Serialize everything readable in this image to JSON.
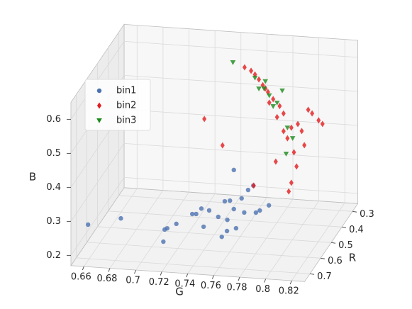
{
  "chart_data": {
    "type": "scatter3d",
    "xlabel": "G",
    "ylabel": "R",
    "zlabel": "B",
    "xlim": [
      0.65,
      0.83
    ],
    "ylim": [
      0.25,
      0.75
    ],
    "zlim": [
      0.17,
      0.65
    ],
    "xticks": [
      0.66,
      0.68,
      0.7,
      0.72,
      0.74,
      0.76,
      0.78,
      0.8,
      0.82
    ],
    "yticks": [
      0.3,
      0.4,
      0.5,
      0.6,
      0.7
    ],
    "zticks": [
      0.2,
      0.3,
      0.4,
      0.5,
      0.6
    ],
    "grid": true,
    "legend": "upper left",
    "series": [
      {
        "name": "bin1",
        "color": "#4c72b0",
        "marker": "circle",
        "x": [
          0.655,
          0.714,
          0.716,
          0.713,
          0.723,
          0.744,
          0.762,
          0.769,
          0.758,
          0.668,
          0.723,
          0.726,
          0.73,
          0.736,
          0.743,
          0.748,
          0.75,
          0.752,
          0.755,
          0.761,
          0.763,
          0.766,
          0.77,
          0.772,
          0.775,
          0.782,
          0.755
        ],
        "y": [
          0.65,
          0.65,
          0.65,
          0.65,
          0.65,
          0.65,
          0.65,
          0.65,
          0.65,
          0.5,
          0.5,
          0.5,
          0.5,
          0.5,
          0.5,
          0.5,
          0.5,
          0.5,
          0.5,
          0.5,
          0.5,
          0.5,
          0.5,
          0.5,
          0.5,
          0.5,
          0.5
        ],
        "z": [
          0.246,
          0.247,
          0.251,
          0.211,
          0.266,
          0.263,
          0.255,
          0.265,
          0.237,
          0.199,
          0.226,
          0.227,
          0.244,
          0.24,
          0.223,
          0.27,
          0.216,
          0.273,
          0.364,
          0.282,
          0.241,
          0.308,
          0.322,
          0.243,
          0.25,
          0.267,
          0.249
        ]
      },
      {
        "name": "bin2",
        "color": "#e41a1c",
        "marker": "diamond",
        "x": [
          0.72,
          0.734,
          0.758,
          0.775,
          0.785,
          0.787,
          0.791,
          0.797,
          0.792,
          0.781,
          0.778,
          0.773,
          0.769,
          0.765,
          0.762,
          0.756,
          0.751,
          0.776,
          0.787,
          0.803,
          0.808,
          0.811,
          0.8,
          0.795,
          0.784,
          0.781,
          0.77,
          0.759,
          0.767,
          0.789
        ],
        "y": [
          0.35,
          0.35,
          0.35,
          0.35,
          0.35,
          0.35,
          0.35,
          0.35,
          0.35,
          0.35,
          0.35,
          0.35,
          0.35,
          0.35,
          0.35,
          0.35,
          0.35,
          0.35,
          0.35,
          0.35,
          0.35,
          0.35,
          0.35,
          0.35,
          0.35,
          0.35,
          0.35,
          0.35,
          0.35,
          0.35
        ],
        "z": [
          0.436,
          0.362,
          0.25,
          0.325,
          0.24,
          0.266,
          0.315,
          0.379,
          0.44,
          0.468,
          0.489,
          0.508,
          0.528,
          0.547,
          0.563,
          0.587,
          0.596,
          0.456,
          0.428,
          0.474,
          0.455,
          0.445,
          0.484,
          0.42,
          0.396,
          0.416,
          0.497,
          0.577,
          0.538,
          0.356
        ]
      },
      {
        "name": "bin3",
        "color": "#1a8a1a",
        "marker": "triangle-down",
        "x": [
          0.742,
          0.759,
          0.766,
          0.77,
          0.776,
          0.78,
          0.784,
          0.788,
          0.783,
          0.762,
          0.773,
          0.767
        ],
        "y": [
          0.35,
          0.35,
          0.35,
          0.35,
          0.35,
          0.35,
          0.35,
          0.35,
          0.35,
          0.35,
          0.35,
          0.35
        ],
        "z": [
          0.608,
          0.567,
          0.537,
          0.518,
          0.498,
          0.535,
          0.427,
          0.397,
          0.35,
          0.536,
          0.487,
          0.559
        ]
      }
    ]
  }
}
